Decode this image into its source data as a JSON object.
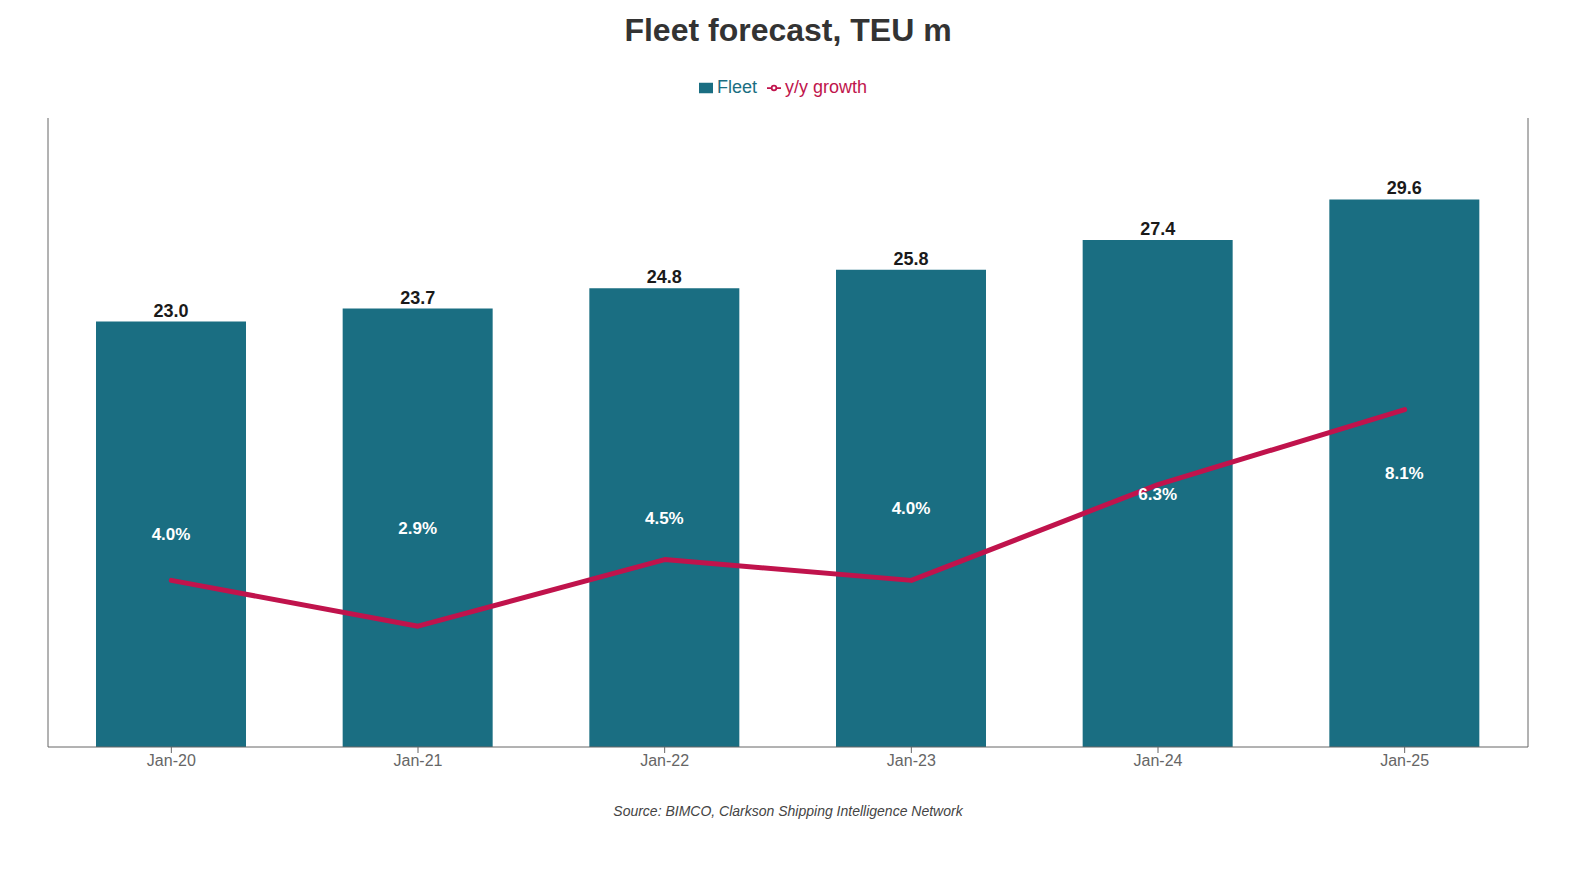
{
  "chart_data": {
    "type": "bar",
    "title": "Fleet forecast, TEU m",
    "categories": [
      "Jan-20",
      "Jan-21",
      "Jan-22",
      "Jan-23",
      "Jan-24",
      "Jan-25"
    ],
    "series": [
      {
        "name": "Fleet",
        "type": "bar",
        "color": "#1a6e82",
        "values": [
          23.0,
          23.7,
          24.8,
          25.8,
          27.4,
          29.6
        ],
        "value_labels": [
          "23.0",
          "23.7",
          "24.8",
          "25.8",
          "27.4",
          "29.6"
        ]
      },
      {
        "name": "y/y growth",
        "type": "line",
        "color": "#c0134c",
        "axis": "y2",
        "values": [
          4.0,
          2.9,
          4.5,
          4.0,
          6.3,
          8.1
        ],
        "value_labels": [
          "4.0%",
          "2.9%",
          "4.5%",
          "4.0%",
          "6.3%",
          "8.1%"
        ]
      }
    ],
    "ylim": [
      0,
      34
    ],
    "y2lim": [
      0,
      15.1
    ],
    "tick_labels": "x",
    "grid": false,
    "legend": "top",
    "data_labels": true,
    "annotations": [
      "Source: BIMCO, Clarkson Shipping Intelligence Network"
    ]
  }
}
